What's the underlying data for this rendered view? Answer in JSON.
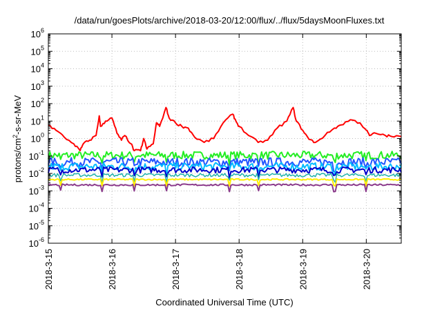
{
  "chart_data": {
    "type": "line",
    "title": "/data/run/goesPlots/archive/2018-03-20/12:00/flux/../flux/5daysMoonFluxes.txt",
    "xlabel": "Coordinated Universal Time (UTC)",
    "ylabel_parts": [
      "protons/cm",
      "2",
      "-s-sr-MeV"
    ],
    "yscale": "log",
    "ylim_exp": [
      -6,
      6
    ],
    "y_ticks": [
      {
        "base": "10",
        "exp": "-6"
      },
      {
        "base": "10",
        "exp": "-5"
      },
      {
        "base": "10",
        "exp": "-4"
      },
      {
        "base": "10",
        "exp": "-3"
      },
      {
        "base": "10",
        "exp": "-2"
      },
      {
        "base": "10",
        "exp": "-1"
      },
      {
        "base": "10",
        "exp": "0"
      },
      {
        "base": "10",
        "exp": "1"
      },
      {
        "base": "10",
        "exp": "2"
      },
      {
        "base": "10",
        "exp": "3"
      },
      {
        "base": "10",
        "exp": "4"
      },
      {
        "base": "10",
        "exp": "5"
      },
      {
        "base": "10",
        "exp": "6"
      }
    ],
    "x_ticks": [
      "2018-3-15",
      "2018-3-16",
      "2018-3-17",
      "2018-3-18",
      "2018-3-19",
      "2018-3-20"
    ],
    "xlim_days": [
      0,
      5.55
    ],
    "grid": true,
    "series": [
      {
        "color": "#ff0000",
        "width": 2,
        "points": [
          [
            0,
            6
          ],
          [
            0.12,
            3
          ],
          [
            0.25,
            1.2
          ],
          [
            0.4,
            0.5
          ],
          [
            0.5,
            0.2
          ],
          [
            0.55,
            0.5
          ],
          [
            0.65,
            0.8
          ],
          [
            0.75,
            1.5
          ],
          [
            0.8,
            20
          ],
          [
            0.82,
            5
          ],
          [
            0.9,
            10
          ],
          [
            1.0,
            15
          ],
          [
            1.08,
            2
          ],
          [
            1.15,
            0.8
          ],
          [
            1.2,
            1.5
          ],
          [
            1.3,
            0.5
          ],
          [
            1.35,
            0.2
          ],
          [
            1.45,
            0.2
          ],
          [
            1.5,
            1.0
          ],
          [
            1.55,
            0.25
          ],
          [
            1.65,
            0.5
          ],
          [
            1.7,
            8
          ],
          [
            1.75,
            5
          ],
          [
            1.85,
            60
          ],
          [
            1.9,
            15
          ],
          [
            2.0,
            8
          ],
          [
            2.1,
            5
          ],
          [
            2.2,
            4
          ],
          [
            2.3,
            1.2
          ],
          [
            2.45,
            0.6
          ],
          [
            2.6,
            1.0
          ],
          [
            2.75,
            8
          ],
          [
            2.9,
            25
          ],
          [
            2.95,
            10
          ],
          [
            3.0,
            5
          ],
          [
            3.15,
            1.5
          ],
          [
            3.3,
            0.6
          ],
          [
            3.45,
            0.8
          ],
          [
            3.6,
            4
          ],
          [
            3.75,
            10
          ],
          [
            3.85,
            60
          ],
          [
            3.9,
            10
          ],
          [
            4.0,
            3
          ],
          [
            4.1,
            0.9
          ],
          [
            4.2,
            0.6
          ],
          [
            4.35,
            1.5
          ],
          [
            4.5,
            4
          ],
          [
            4.6,
            6
          ],
          [
            4.75,
            12
          ],
          [
            4.9,
            8
          ],
          [
            5.0,
            3
          ],
          [
            5.05,
            1.5
          ],
          [
            5.15,
            2
          ],
          [
            5.3,
            1.5
          ],
          [
            5.4,
            1.3
          ],
          [
            5.55,
            1.3
          ]
        ]
      },
      {
        "color": "#22ee22",
        "width": 2,
        "level": 0.11,
        "noise": 0.45
      },
      {
        "color": "#2255ff",
        "width": 2,
        "level": 0.045,
        "noise": 0.5
      },
      {
        "color": "#00bbff",
        "width": 2,
        "level": 0.025,
        "noise": 0.45
      },
      {
        "color": "#0000cc",
        "width": 2,
        "level": 0.016,
        "noise": 0.35
      },
      {
        "color": "#20b2aa",
        "width": 1.5,
        "level": 0.008,
        "noise": 0.2
      },
      {
        "color": "#ffee00",
        "width": 2,
        "level": 0.0045,
        "noise": 0.08
      },
      {
        "color": "#8b3a8b",
        "width": 2,
        "level": 0.0022,
        "noise": 0.1
      }
    ],
    "dips_days": [
      0.2,
      0.85,
      1.35,
      1.85,
      2.85,
      3.3,
      4.5,
      5.0
    ]
  }
}
